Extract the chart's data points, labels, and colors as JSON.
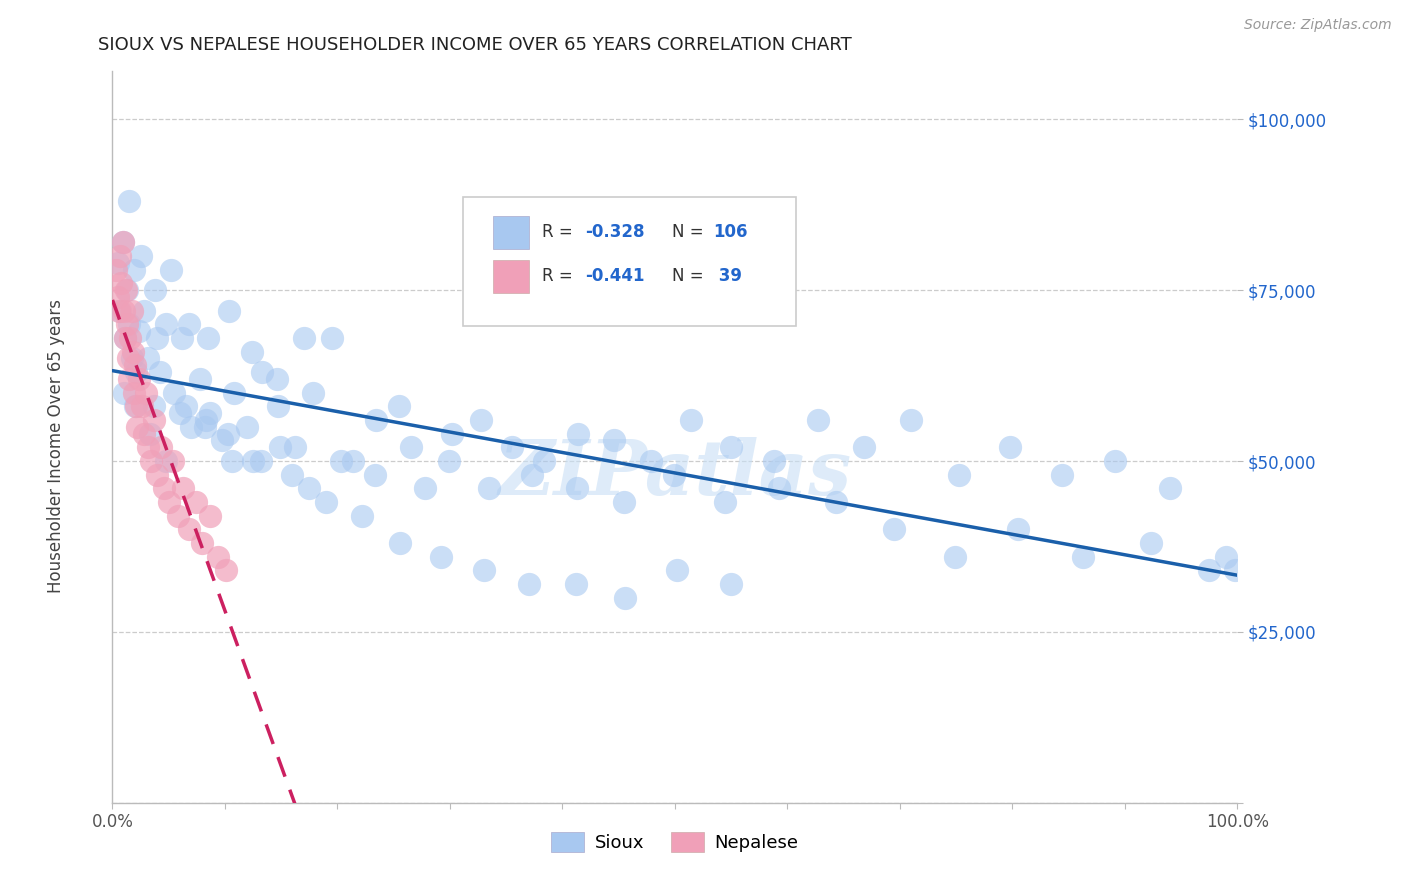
{
  "title": "SIOUX VS NEPALESE HOUSEHOLDER INCOME OVER 65 YEARS CORRELATION CHART",
  "source": "Source: ZipAtlas.com",
  "ylabel": "Householder Income Over 65 years",
  "watermark": "ZIPatlas",
  "sioux_color": "#a8c8f0",
  "nepalese_color": "#f0a0b8",
  "trend_sioux_color": "#1a5faa",
  "trend_nepalese_color": "#cc2060",
  "background_color": "#ffffff",
  "grid_color": "#c0c0c0",
  "xlim": [
    0.0,
    1.0
  ],
  "ylim": [
    0,
    107000
  ],
  "yticks": [
    0,
    25000,
    50000,
    75000,
    100000
  ],
  "sioux_x": [
    0.005,
    0.007,
    0.009,
    0.011,
    0.013,
    0.015,
    0.017,
    0.019,
    0.021,
    0.024,
    0.028,
    0.032,
    0.037,
    0.042,
    0.048,
    0.055,
    0.062,
    0.07,
    0.078,
    0.087,
    0.097,
    0.108,
    0.12,
    0.133,
    0.147,
    0.162,
    0.178,
    0.195,
    0.214,
    0.234,
    0.255,
    0.278,
    0.302,
    0.328,
    0.355,
    0.384,
    0.414,
    0.446,
    0.479,
    0.514,
    0.55,
    0.588,
    0.627,
    0.668,
    0.71,
    0.753,
    0.798,
    0.844,
    0.891,
    0.94,
    0.015,
    0.025,
    0.038,
    0.052,
    0.068,
    0.085,
    0.104,
    0.124,
    0.146,
    0.17,
    0.01,
    0.02,
    0.033,
    0.048,
    0.065,
    0.083,
    0.103,
    0.125,
    0.149,
    0.175,
    0.203,
    0.233,
    0.265,
    0.299,
    0.335,
    0.373,
    0.413,
    0.455,
    0.499,
    0.545,
    0.593,
    0.643,
    0.695,
    0.749,
    0.805,
    0.863,
    0.923,
    0.975,
    0.99,
    0.998,
    0.04,
    0.06,
    0.082,
    0.106,
    0.132,
    0.16,
    0.19,
    0.222,
    0.256,
    0.292,
    0.33,
    0.37,
    0.412,
    0.456,
    0.502,
    0.55
  ],
  "sioux_y": [
    79000,
    72000,
    82000,
    68000,
    75000,
    70000,
    65000,
    78000,
    63000,
    69000,
    72000,
    65000,
    58000,
    63000,
    70000,
    60000,
    68000,
    55000,
    62000,
    57000,
    53000,
    60000,
    55000,
    63000,
    58000,
    52000,
    60000,
    68000,
    50000,
    56000,
    58000,
    46000,
    54000,
    56000,
    52000,
    50000,
    54000,
    53000,
    50000,
    56000,
    52000,
    50000,
    56000,
    52000,
    56000,
    48000,
    52000,
    48000,
    50000,
    46000,
    88000,
    80000,
    75000,
    78000,
    70000,
    68000,
    72000,
    66000,
    62000,
    68000,
    60000,
    58000,
    54000,
    50000,
    58000,
    56000,
    54000,
    50000,
    52000,
    46000,
    50000,
    48000,
    52000,
    50000,
    46000,
    48000,
    46000,
    44000,
    48000,
    44000,
    46000,
    44000,
    40000,
    36000,
    40000,
    36000,
    38000,
    34000,
    36000,
    34000,
    68000,
    57000,
    55000,
    50000,
    50000,
    48000,
    44000,
    42000,
    38000,
    36000,
    34000,
    32000,
    32000,
    30000,
    34000,
    32000
  ],
  "nepalese_x": [
    0.003,
    0.005,
    0.006,
    0.007,
    0.008,
    0.009,
    0.01,
    0.011,
    0.012,
    0.013,
    0.014,
    0.015,
    0.016,
    0.017,
    0.018,
    0.019,
    0.02,
    0.021,
    0.022,
    0.024,
    0.026,
    0.028,
    0.03,
    0.032,
    0.034,
    0.037,
    0.04,
    0.043,
    0.046,
    0.05,
    0.054,
    0.058,
    0.063,
    0.068,
    0.074,
    0.08,
    0.087,
    0.094,
    0.101
  ],
  "nepalese_y": [
    78000,
    74000,
    72000,
    80000,
    76000,
    82000,
    72000,
    68000,
    75000,
    70000,
    65000,
    62000,
    68000,
    72000,
    66000,
    60000,
    64000,
    58000,
    55000,
    62000,
    58000,
    54000,
    60000,
    52000,
    50000,
    56000,
    48000,
    52000,
    46000,
    44000,
    50000,
    42000,
    46000,
    40000,
    44000,
    38000,
    42000,
    36000,
    34000
  ],
  "nepalese_trend_xlim": [
    0.0,
    0.28
  ],
  "sioux_trend_xlim": [
    0.0,
    1.0
  ]
}
